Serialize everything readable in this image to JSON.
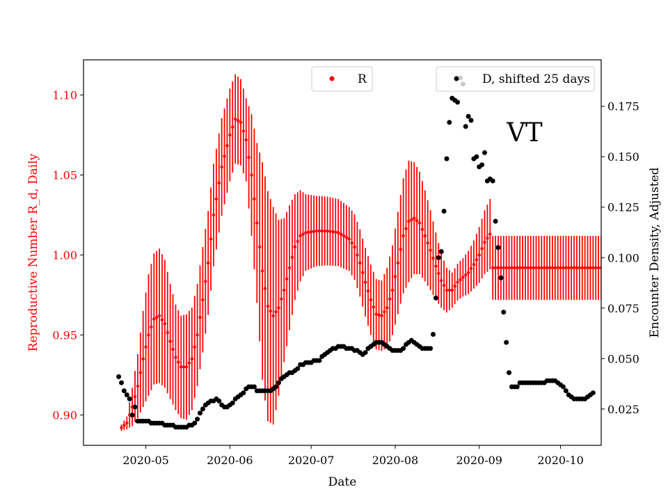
{
  "chart_data": {
    "type": "scatter",
    "title": "",
    "annotation": "VT",
    "xlabel": "Date",
    "ylabel_left": "Reproductive Number R_d, Daily",
    "ylabel_right": "Encounter Density, Adjusted",
    "ylim_left": [
      0.881,
      1.122
    ],
    "ylim_right": [
      0.007,
      0.198
    ],
    "grid": false,
    "colors": {
      "R": "#ff0000",
      "D": "#000000",
      "left_axis_text": "#ff0000",
      "right_axis_text": "#000000"
    },
    "x_ticks": [
      "2020-05",
      "2020-06",
      "2020-07",
      "2020-08",
      "2020-09",
      "2020-10"
    ],
    "x_tick_day_index": [
      9,
      40,
      70,
      101,
      132,
      162
    ],
    "x_range_day_index": [
      -14,
      177
    ],
    "y_ticks_left": [
      "0.90",
      "0.95",
      "1.00",
      "1.05",
      "1.10"
    ],
    "y_ticks_left_values": [
      0.9,
      0.95,
      1.0,
      1.05,
      1.1
    ],
    "y_ticks_right": [
      "0.025",
      "0.050",
      "0.075",
      "0.100",
      "0.125",
      "0.150",
      "0.175"
    ],
    "y_ticks_right_values": [
      0.025,
      0.05,
      0.075,
      0.1,
      0.125,
      0.15,
      0.175
    ],
    "legend": [
      {
        "name": "R",
        "color": "#ff0000",
        "position": "top-center"
      },
      {
        "name": "D, shifted 25 days",
        "color": "#000000",
        "position": "top-right"
      }
    ],
    "R_series": {
      "start_date": "2020-04-22",
      "center_knots": [
        [
          0,
          0.892
        ],
        [
          2,
          0.895
        ],
        [
          4,
          0.905
        ],
        [
          6,
          0.918
        ],
        [
          8,
          0.935
        ],
        [
          10,
          0.95
        ],
        [
          12,
          0.96
        ],
        [
          14,
          0.962
        ],
        [
          16,
          0.957
        ],
        [
          18,
          0.946
        ],
        [
          20,
          0.936
        ],
        [
          22,
          0.93
        ],
        [
          24,
          0.93
        ],
        [
          26,
          0.935
        ],
        [
          28,
          0.95
        ],
        [
          30,
          0.972
        ],
        [
          32,
          0.995
        ],
        [
          34,
          1.025
        ],
        [
          37,
          1.055
        ],
        [
          40,
          1.075
        ],
        [
          42,
          1.085
        ],
        [
          44,
          1.083
        ],
        [
          46,
          1.072
        ],
        [
          48,
          1.05
        ],
        [
          50,
          1.02
        ],
        [
          52,
          0.99
        ],
        [
          54,
          0.968
        ],
        [
          56,
          0.962
        ],
        [
          58,
          0.967
        ],
        [
          60,
          0.978
        ],
        [
          62,
          0.992
        ],
        [
          64,
          1.005
        ],
        [
          66,
          1.012
        ],
        [
          68,
          1.014
        ],
        [
          72,
          1.015
        ],
        [
          76,
          1.015
        ],
        [
          80,
          1.014
        ],
        [
          84,
          1.01
        ],
        [
          86,
          1.005
        ],
        [
          88,
          0.995
        ],
        [
          90,
          0.983
        ],
        [
          92,
          0.972
        ],
        [
          94,
          0.963
        ],
        [
          96,
          0.962
        ],
        [
          98,
          0.967
        ],
        [
          100,
          0.978
        ],
        [
          102,
          0.995
        ],
        [
          104,
          1.012
        ],
        [
          106,
          1.021
        ],
        [
          108,
          1.023
        ],
        [
          110,
          1.02
        ],
        [
          112,
          1.012
        ],
        [
          114,
          1.003
        ],
        [
          116,
          0.993
        ],
        [
          118,
          0.984
        ],
        [
          120,
          0.978
        ],
        [
          122,
          0.978
        ],
        [
          124,
          0.983
        ],
        [
          126,
          0.986
        ],
        [
          128,
          0.989
        ],
        [
          130,
          0.994
        ],
        [
          132,
          1.0
        ],
        [
          134,
          1.008
        ],
        [
          136,
          1.013
        ],
        [
          137,
          0.992
        ],
        [
          178,
          0.992
        ]
      ],
      "halfwidth_knots": [
        [
          0,
          0.002
        ],
        [
          2,
          0.004
        ],
        [
          4,
          0.012
        ],
        [
          6,
          0.02
        ],
        [
          8,
          0.03
        ],
        [
          10,
          0.038
        ],
        [
          12,
          0.041
        ],
        [
          14,
          0.042
        ],
        [
          16,
          0.04
        ],
        [
          18,
          0.036
        ],
        [
          20,
          0.033
        ],
        [
          22,
          0.032
        ],
        [
          24,
          0.033
        ],
        [
          26,
          0.032
        ],
        [
          28,
          0.032
        ],
        [
          30,
          0.033
        ],
        [
          34,
          0.032
        ],
        [
          38,
          0.03
        ],
        [
          42,
          0.028
        ],
        [
          46,
          0.026
        ],
        [
          50,
          0.05
        ],
        [
          52,
          0.068
        ],
        [
          54,
          0.072
        ],
        [
          56,
          0.068
        ],
        [
          58,
          0.055
        ],
        [
          60,
          0.045
        ],
        [
          64,
          0.033
        ],
        [
          68,
          0.024
        ],
        [
          72,
          0.022
        ],
        [
          80,
          0.021
        ],
        [
          84,
          0.02
        ],
        [
          88,
          0.021
        ],
        [
          92,
          0.022
        ],
        [
          96,
          0.022
        ],
        [
          100,
          0.028
        ],
        [
          104,
          0.036
        ],
        [
          106,
          0.038
        ],
        [
          110,
          0.032
        ],
        [
          114,
          0.025
        ],
        [
          118,
          0.017
        ],
        [
          122,
          0.011
        ],
        [
          126,
          0.012
        ],
        [
          130,
          0.015
        ],
        [
          134,
          0.02
        ],
        [
          136,
          0.022
        ],
        [
          137,
          0.02
        ],
        [
          178,
          0.02
        ]
      ]
    },
    "D_series": {
      "points": [
        [
          -1,
          0.041
        ],
        [
          0,
          0.038
        ],
        [
          1,
          0.034
        ],
        [
          2,
          0.032
        ],
        [
          3,
          0.03
        ],
        [
          4,
          0.022
        ],
        [
          5,
          0.026
        ],
        [
          6,
          0.019
        ],
        [
          7,
          0.019
        ],
        [
          8,
          0.019
        ],
        [
          9,
          0.019
        ],
        [
          10,
          0.019
        ],
        [
          11,
          0.018
        ],
        [
          12,
          0.018
        ],
        [
          13,
          0.018
        ],
        [
          14,
          0.018
        ],
        [
          15,
          0.018
        ],
        [
          16,
          0.017
        ],
        [
          17,
          0.017
        ],
        [
          18,
          0.017
        ],
        [
          19,
          0.017
        ],
        [
          20,
          0.016
        ],
        [
          21,
          0.016
        ],
        [
          22,
          0.016
        ],
        [
          23,
          0.016
        ],
        [
          24,
          0.016
        ],
        [
          25,
          0.017
        ],
        [
          26,
          0.017
        ],
        [
          27,
          0.018
        ],
        [
          28,
          0.02
        ],
        [
          29,
          0.023
        ],
        [
          30,
          0.025
        ],
        [
          31,
          0.027
        ],
        [
          32,
          0.028
        ],
        [
          33,
          0.029
        ],
        [
          34,
          0.029
        ],
        [
          35,
          0.03
        ],
        [
          36,
          0.029
        ],
        [
          37,
          0.027
        ],
        [
          38,
          0.026
        ],
        [
          39,
          0.026
        ],
        [
          40,
          0.027
        ],
        [
          41,
          0.028
        ],
        [
          42,
          0.03
        ],
        [
          43,
          0.031
        ],
        [
          44,
          0.032
        ],
        [
          45,
          0.033
        ],
        [
          46,
          0.035
        ],
        [
          47,
          0.036
        ],
        [
          48,
          0.036
        ],
        [
          49,
          0.036
        ],
        [
          50,
          0.034
        ],
        [
          51,
          0.034
        ],
        [
          52,
          0.034
        ],
        [
          53,
          0.034
        ],
        [
          54,
          0.034
        ],
        [
          55,
          0.034
        ],
        [
          56,
          0.035
        ],
        [
          57,
          0.036
        ],
        [
          58,
          0.038
        ],
        [
          59,
          0.04
        ],
        [
          60,
          0.041
        ],
        [
          61,
          0.042
        ],
        [
          62,
          0.043
        ],
        [
          63,
          0.043
        ],
        [
          64,
          0.044
        ],
        [
          65,
          0.045
        ],
        [
          66,
          0.047
        ],
        [
          67,
          0.047
        ],
        [
          68,
          0.048
        ],
        [
          69,
          0.048
        ],
        [
          70,
          0.048
        ],
        [
          71,
          0.049
        ],
        [
          72,
          0.049
        ],
        [
          73,
          0.049
        ],
        [
          74,
          0.051
        ],
        [
          75,
          0.052
        ],
        [
          76,
          0.053
        ],
        [
          77,
          0.054
        ],
        [
          78,
          0.055
        ],
        [
          79,
          0.055
        ],
        [
          80,
          0.056
        ],
        [
          81,
          0.056
        ],
        [
          82,
          0.056
        ],
        [
          83,
          0.055
        ],
        [
          84,
          0.055
        ],
        [
          85,
          0.055
        ],
        [
          86,
          0.054
        ],
        [
          87,
          0.054
        ],
        [
          88,
          0.053
        ],
        [
          89,
          0.052
        ],
        [
          90,
          0.053
        ],
        [
          91,
          0.055
        ],
        [
          92,
          0.056
        ],
        [
          93,
          0.057
        ],
        [
          94,
          0.058
        ],
        [
          95,
          0.058
        ],
        [
          96,
          0.058
        ],
        [
          97,
          0.057
        ],
        [
          98,
          0.056
        ],
        [
          99,
          0.055
        ],
        [
          100,
          0.054
        ],
        [
          101,
          0.054
        ],
        [
          102,
          0.054
        ],
        [
          103,
          0.054
        ],
        [
          104,
          0.055
        ],
        [
          105,
          0.057
        ],
        [
          106,
          0.058
        ],
        [
          107,
          0.059
        ],
        [
          108,
          0.058
        ],
        [
          109,
          0.057
        ],
        [
          110,
          0.056
        ],
        [
          111,
          0.055
        ],
        [
          112,
          0.055
        ],
        [
          113,
          0.055
        ],
        [
          114,
          0.055
        ],
        [
          115,
          0.062
        ],
        [
          116,
          0.08
        ],
        [
          117,
          0.1
        ],
        [
          118,
          0.103
        ],
        [
          119,
          0.123
        ],
        [
          120,
          0.149
        ],
        [
          121,
          0.167
        ],
        [
          122,
          0.179
        ],
        [
          123,
          0.178
        ],
        [
          124,
          0.177
        ],
        [
          125,
          0.189
        ],
        [
          126,
          0.186
        ],
        [
          127,
          0.165
        ],
        [
          128,
          0.17
        ],
        [
          129,
          0.168
        ],
        [
          130,
          0.149
        ],
        [
          131,
          0.15
        ],
        [
          132,
          0.145
        ],
        [
          133,
          0.146
        ],
        [
          134,
          0.152
        ],
        [
          135,
          0.138
        ],
        [
          136,
          0.139
        ],
        [
          137,
          0.138
        ],
        [
          138,
          0.118
        ],
        [
          139,
          0.105
        ],
        [
          140,
          0.09
        ],
        [
          141,
          0.073
        ],
        [
          142,
          0.058
        ],
        [
          143,
          0.043
        ],
        [
          144,
          0.036
        ],
        [
          145,
          0.036
        ],
        [
          146,
          0.036
        ],
        [
          147,
          0.038
        ],
        [
          148,
          0.038
        ],
        [
          149,
          0.038
        ],
        [
          150,
          0.038
        ],
        [
          151,
          0.038
        ],
        [
          152,
          0.038
        ],
        [
          153,
          0.038
        ],
        [
          154,
          0.038
        ],
        [
          155,
          0.038
        ],
        [
          156,
          0.038
        ],
        [
          157,
          0.039
        ],
        [
          158,
          0.039
        ],
        [
          159,
          0.039
        ],
        [
          160,
          0.039
        ],
        [
          161,
          0.038
        ],
        [
          162,
          0.037
        ],
        [
          163,
          0.036
        ],
        [
          164,
          0.034
        ],
        [
          165,
          0.032
        ],
        [
          166,
          0.031
        ],
        [
          167,
          0.03
        ],
        [
          168,
          0.03
        ],
        [
          169,
          0.03
        ],
        [
          170,
          0.03
        ],
        [
          171,
          0.03
        ],
        [
          172,
          0.031
        ],
        [
          173,
          0.032
        ],
        [
          174,
          0.033
        ]
      ]
    }
  }
}
